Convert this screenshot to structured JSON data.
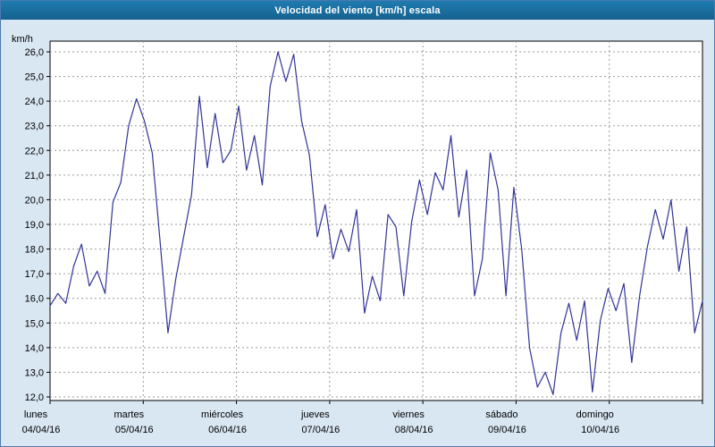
{
  "window": {
    "title": "Velocidad del viento [km/h] escala"
  },
  "colors": {
    "background": "#d9e7f3",
    "titlebar": "#17699f",
    "plot_background": "#ffffff",
    "plot_border": "#000000",
    "grid": "#9a9a9a",
    "line": "#333399",
    "frame": "#4a7ab0"
  },
  "chart_data": {
    "type": "line",
    "title": "Velocidad del viento [km/h] escala",
    "ylabel": "km/h",
    "xlabel": "",
    "ylim": [
      12,
      26
    ],
    "ytick_step": 1,
    "ytick_values": [
      26,
      25,
      24,
      23,
      22,
      21,
      20,
      19,
      18,
      17,
      16,
      15,
      14,
      13,
      12
    ],
    "ytick_labels": [
      "26,0",
      "25,0",
      "24,0",
      "23,0",
      "22,0",
      "21,0",
      "20,0",
      "19,0",
      "18,0",
      "17,0",
      "16,0",
      "15,0",
      "14,0",
      "13,0",
      "12,0"
    ],
    "grid": true,
    "legend": "none",
    "days": [
      {
        "label": "lunes",
        "date": "04/04/16"
      },
      {
        "label": "martes",
        "date": "05/04/16"
      },
      {
        "label": "miércoles",
        "date": "06/04/16"
      },
      {
        "label": "jueves",
        "date": "07/04/16"
      },
      {
        "label": "viernes",
        "date": "08/04/16"
      },
      {
        "label": "sábado",
        "date": "09/04/16"
      },
      {
        "label": "domingo",
        "date": "10/04/16"
      }
    ],
    "points_per_day": 12,
    "values": [
      15.7,
      16.2,
      15.8,
      17.3,
      18.2,
      16.5,
      17.1,
      16.2,
      19.9,
      20.7,
      23.0,
      24.1,
      23.2,
      21.9,
      18.3,
      14.6,
      16.8,
      18.5,
      20.2,
      24.2,
      21.3,
      23.5,
      21.5,
      22.0,
      23.8,
      21.2,
      22.6,
      20.6,
      24.6,
      26.0,
      24.8,
      25.9,
      23.2,
      21.8,
      18.5,
      19.8,
      17.6,
      18.8,
      17.9,
      19.6,
      15.4,
      16.9,
      15.9,
      19.4,
      18.9,
      16.1,
      19.1,
      20.8,
      19.4,
      21.1,
      20.4,
      22.6,
      19.3,
      21.2,
      16.1,
      17.6,
      21.9,
      20.4,
      16.1,
      20.5,
      18.0,
      14.0,
      12.4,
      13.0,
      12.1,
      14.6,
      15.8,
      14.3,
      15.9,
      12.2,
      15.1,
      16.4,
      15.5,
      16.6,
      13.4,
      16.1,
      18.1,
      19.6,
      18.4,
      20.0,
      17.1,
      18.9,
      14.6,
      15.9
    ]
  }
}
